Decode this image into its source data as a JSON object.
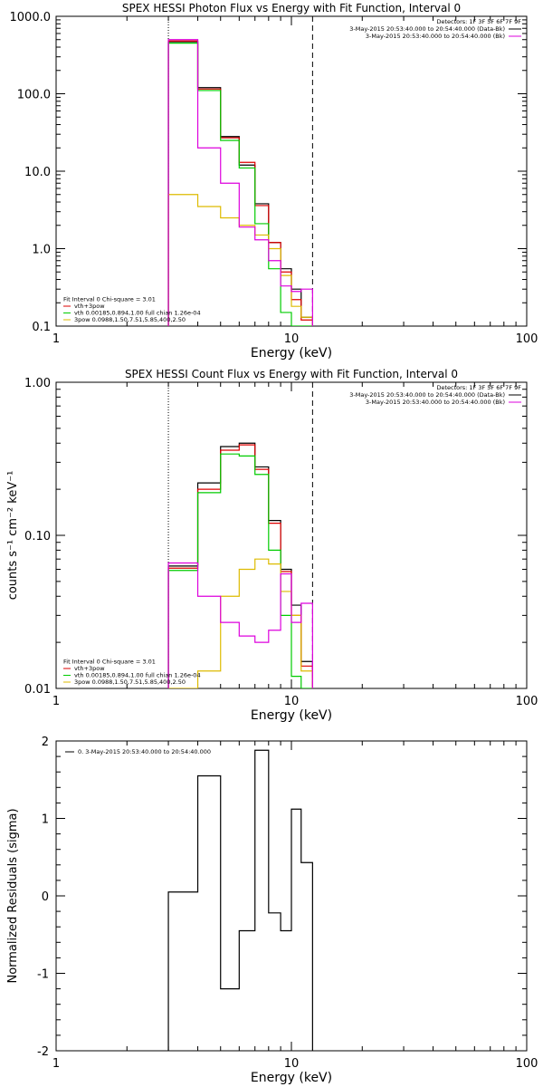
{
  "chart_data": [
    {
      "type": "line",
      "title": "SPEX HESSI Photon Flux vs Energy with Fit Function, Interval 0",
      "xlabel": "Energy (keV)",
      "ylabel": "",
      "xscale": "log",
      "yscale": "log",
      "xlim": [
        1,
        100
      ],
      "ylim": [
        0.1,
        1000
      ],
      "xticks": [
        "1",
        "10",
        "100"
      ],
      "yticks": [
        "0.1",
        "1.0",
        "10.0",
        "100.0",
        "1000.0"
      ],
      "legend": {
        "placement": "top-right",
        "header": "Detectors: 1F 3F 5F 6F 7F 9F",
        "entries": [
          {
            "label": "3-May-2015 20:53:40.000 to 20:54:40.000 (Data-Bk)",
            "color": "#000000"
          },
          {
            "label": "3-May-2015 20:53:40.000 to 20:54:40.000 (Bk)",
            "color": "#dd00dd"
          }
        ]
      },
      "fit_legend": {
        "placement": "bottom-left",
        "header": "Fit Interval 0   Chi-square = 3.01",
        "entries": [
          {
            "label": "vth+3pow",
            "color": "#dd0000"
          },
          {
            "label": "vth 0.00185,0.894,1.00  full chian 1.26e-04",
            "color": "#00cc00"
          },
          {
            "label": "3pow 0.0988,1.50,7.51,5.85,400,2.50",
            "color": "#ddbb00"
          }
        ]
      },
      "vlines": [
        {
          "x": 3.0,
          "style": "dotted"
        },
        {
          "x": 12.3,
          "style": "dashed"
        }
      ],
      "bin_edges": [
        3.0,
        4.0,
        5.0,
        6.0,
        7.0,
        8.0,
        9.0,
        10.0,
        11.0,
        12.3
      ],
      "series": [
        {
          "name": "Data-Bk",
          "color": "#000000",
          "values": [
            470,
            120,
            28,
            12,
            3.8,
            1.2,
            0.55,
            0.3,
            0.13
          ]
        },
        {
          "name": "vth+3pow",
          "color": "#dd0000",
          "values": [
            480,
            115,
            27,
            13,
            3.6,
            1.2,
            0.5,
            0.22,
            0.12
          ]
        },
        {
          "name": "vth",
          "color": "#00cc00",
          "values": [
            450,
            110,
            25,
            11,
            2.1,
            0.55,
            0.15,
            0.1,
            0.1
          ]
        },
        {
          "name": "3pow",
          "color": "#ddbb00",
          "values": [
            5,
            3.5,
            2.5,
            2.0,
            1.5,
            1.0,
            0.45,
            0.18,
            0.13
          ]
        },
        {
          "name": "Bk",
          "color": "#dd00dd",
          "values": [
            500,
            20,
            7,
            1.9,
            1.3,
            0.7,
            0.33,
            0.28,
            0.3
          ]
        }
      ]
    },
    {
      "type": "line",
      "title": "SPEX HESSI Count Flux vs Energy with Fit Function, Interval 0",
      "xlabel": "Energy (keV)",
      "ylabel": "counts s⁻¹ cm⁻² keV⁻¹",
      "xscale": "log",
      "yscale": "log",
      "xlim": [
        1,
        100
      ],
      "ylim": [
        0.01,
        1
      ],
      "xticks": [
        "1",
        "10",
        "100"
      ],
      "yticks": [
        "0.01",
        "0.10",
        "1.00"
      ],
      "legend": {
        "placement": "top-right",
        "header": "Detectors: 1F 3F 5F 6F 7F 9F",
        "entries": [
          {
            "label": "3-May-2015 20:53:40.000 to 20:54:40.000 (Data-Bk)",
            "color": "#000000"
          },
          {
            "label": "3-May-2015 20:53:40.000 to 20:54:40.000 (Bk)",
            "color": "#dd00dd"
          }
        ]
      },
      "fit_legend": {
        "placement": "bottom-left",
        "header": "Fit Interval 0   Chi-square = 3.01",
        "entries": [
          {
            "label": "vth+3pow",
            "color": "#dd0000"
          },
          {
            "label": "vth 0.00185,0.894,1.00  full chian 1.26e-04",
            "color": "#00cc00"
          },
          {
            "label": "3pow 0.0988,1.50,7.51,5.85,400,2.50",
            "color": "#ddbb00"
          }
        ]
      },
      "vlines": [
        {
          "x": 3.0,
          "style": "dotted"
        },
        {
          "x": 12.3,
          "style": "dashed"
        }
      ],
      "bin_edges": [
        3.0,
        4.0,
        5.0,
        6.0,
        7.0,
        8.0,
        9.0,
        10.0,
        11.0,
        12.3
      ],
      "series": [
        {
          "name": "Data-Bk",
          "color": "#000000",
          "values": [
            0.063,
            0.22,
            0.38,
            0.4,
            0.28,
            0.125,
            0.06,
            0.035,
            0.015
          ]
        },
        {
          "name": "vth+3pow",
          "color": "#dd0000",
          "values": [
            0.061,
            0.2,
            0.36,
            0.39,
            0.27,
            0.12,
            0.058,
            0.03,
            0.014
          ]
        },
        {
          "name": "vth",
          "color": "#00cc00",
          "values": [
            0.059,
            0.19,
            0.34,
            0.33,
            0.25,
            0.08,
            0.03,
            0.012,
            0.01
          ]
        },
        {
          "name": "3pow",
          "color": "#ddbb00",
          "values": [
            0.01,
            0.013,
            0.04,
            0.06,
            0.07,
            0.065,
            0.043,
            0.03,
            0.013
          ]
        },
        {
          "name": "Bk",
          "color": "#dd00dd",
          "values": [
            0.066,
            0.04,
            0.027,
            0.022,
            0.02,
            0.024,
            0.056,
            0.027,
            0.036
          ]
        }
      ]
    },
    {
      "type": "line",
      "title": "",
      "xlabel": "Energy (keV)",
      "ylabel": "Normalized Residuals (sigma)",
      "xscale": "log",
      "yscale": "linear",
      "xlim": [
        1,
        100
      ],
      "ylim": [
        -2,
        2
      ],
      "xticks": [
        "1",
        "10",
        "100"
      ],
      "yticks": [
        "-2",
        "-1",
        "0",
        "1",
        "2"
      ],
      "legend": {
        "placement": "top-left",
        "entries": [
          {
            "label": "0. 3-May-2015 20:53:40.000 to 20:54:40.000",
            "color": "#000000"
          }
        ]
      },
      "bin_edges": [
        3.0,
        4.0,
        5.0,
        6.0,
        7.0,
        8.0,
        9.0,
        10.0,
        11.0,
        12.3
      ],
      "series": [
        {
          "name": "Residuals",
          "color": "#000000",
          "values": [
            0.05,
            1.55,
            -1.2,
            -0.45,
            1.88,
            -0.22,
            -0.45,
            1.12,
            0.43
          ]
        }
      ]
    }
  ]
}
